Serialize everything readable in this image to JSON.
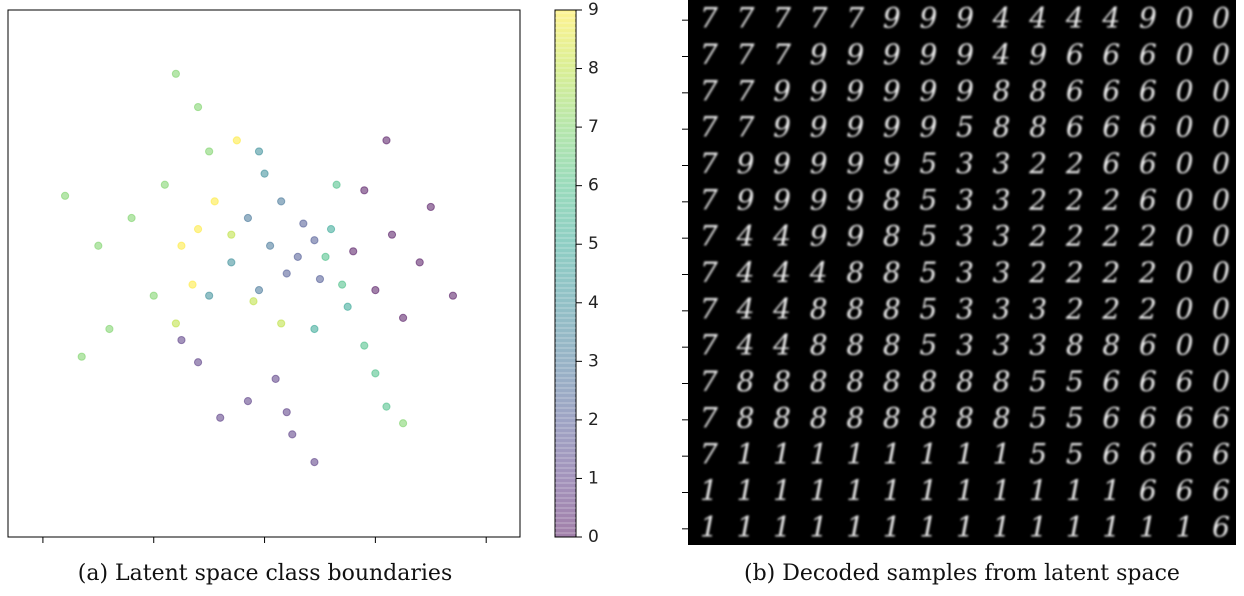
{
  "chart_data": {
    "type": "scatter",
    "x": [
      2.3,
      1.8,
      2.8,
      2.0,
      3.0,
      2.5,
      1.6,
      3.4,
      2.2,
      -0.3,
      -1.2,
      0.5,
      -0.8,
      0.2,
      0.9,
      -1.5,
      0.4,
      0.6,
      0.9,
      0.4,
      1.0,
      0.7,
      0.1,
      -0.3,
      0.3,
      -0.1,
      -0.1,
      0.0,
      -0.6,
      -1.0,
      1.2,
      1.5,
      0.9,
      1.4,
      1.8,
      1.1,
      2.0,
      1.3,
      2.2,
      -2.4,
      -3.0,
      -1.8,
      -2.8,
      -1.2,
      -1.0,
      -3.6,
      -2.0,
      -3.3,
      -1.6,
      2.5,
      -0.2,
      0.3,
      -0.6,
      -1.6,
      -1.2,
      -1.5,
      -0.9,
      -1.3,
      -0.5
    ],
    "values": [
      0.7,
      1.5,
      0.2,
      -0.3,
      1.2,
      -0.8,
      0.4,
      -0.4,
      2.4,
      -2.3,
      -1.6,
      -2.9,
      -2.6,
      -1.9,
      -3.4,
      -1.2,
      -2.5,
      0.3,
      0.6,
      0.0,
      -0.1,
      0.9,
      0.5,
      1.0,
      1.3,
      -0.3,
      2.2,
      1.8,
      0.2,
      -0.4,
      0.8,
      -0.6,
      -1.0,
      -0.2,
      -1.3,
      0.3,
      -1.8,
      1.6,
      -2.4,
      1.0,
      0.5,
      1.6,
      -1.0,
      3.0,
      2.2,
      1.4,
      -0.4,
      -1.5,
      3.6,
      -2.7,
      -0.5,
      -0.9,
      0.7,
      -0.9,
      0.8,
      0.5,
      1.3,
      -0.2,
      2.4
    ],
    "color_values": [
      0,
      0,
      0,
      0,
      0,
      0,
      0,
      0,
      0,
      1,
      1,
      1,
      1,
      1,
      1,
      1,
      1,
      2,
      2,
      2,
      2,
      2,
      3,
      3,
      3,
      3,
      4,
      4,
      4,
      4,
      5,
      5,
      5,
      6,
      6,
      6,
      6,
      6,
      6,
      7,
      7,
      7,
      7,
      7,
      7,
      7,
      7,
      7,
      7,
      7,
      8,
      8,
      8,
      8,
      9,
      9,
      9,
      9,
      9
    ],
    "xlim": [
      -4.63,
      4.61
    ],
    "ylim": [
      -4.75,
      4.75
    ],
    "xticks": [
      -4,
      -2,
      0,
      2,
      4
    ],
    "clim": [
      0,
      9
    ],
    "cticks": [
      0,
      1,
      2,
      3,
      4,
      5,
      6,
      7,
      8,
      9
    ],
    "colormap": [
      "#440154",
      "#482878",
      "#3e4989",
      "#31688e",
      "#26828e",
      "#1f9e89",
      "#35b779",
      "#6ece58",
      "#b5de2b",
      "#fde725"
    ],
    "alpha": 0.5
  },
  "decoded_samples": {
    "rows": [
      "777779994444900",
      "777999994966600",
      "779999998866600",
      "779999958866600",
      "799999533226600",
      "799998533222600",
      "744998533222200",
      "744488533222200",
      "744888533322200",
      "744888533388600",
      "788888888556660",
      "788888888556666",
      "711111111556666",
      "111111111111666",
      "111111111111116"
    ]
  },
  "captions": {
    "a": "(a) Latent space class boundaries",
    "b": "(b) Decoded samples from latent space"
  }
}
